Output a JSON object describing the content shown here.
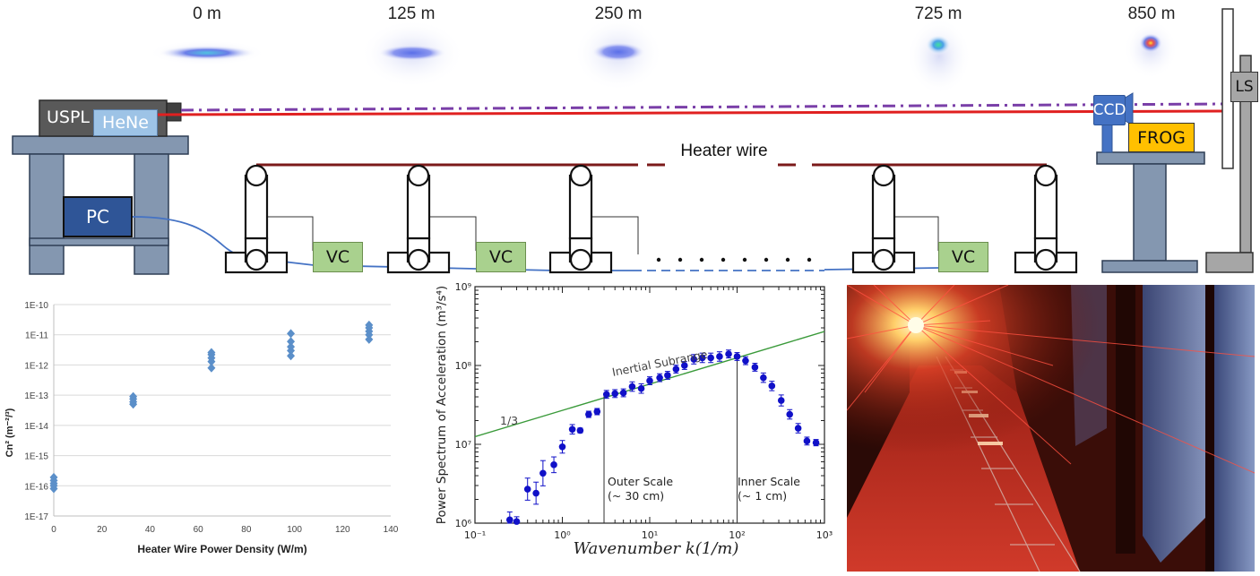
{
  "diagram": {
    "distances": [
      "0 m",
      "125 m",
      "250 m",
      "725 m",
      "850 m"
    ],
    "labels": {
      "uspl": "USPL",
      "hene": "HeNe",
      "pc": "PC",
      "ccd": "CCD",
      "frog": "FROG",
      "ls": "LS",
      "vc": "VC",
      "heater": "Heater wire"
    },
    "colors": {
      "laser_red": "#e02020",
      "dashdot_purple": "#7a3fa8",
      "heater_wire": "#7b1a1a",
      "cable_blue": "#4472c4",
      "stand_gray": "#8497b0",
      "vc_green": "#a9d18e",
      "frog_orange": "#ffc000",
      "ccd_blue": "#4472c4",
      "pc_navy": "#2f5597"
    }
  },
  "chart_data": [
    {
      "type": "scatter",
      "xlabel": "Heater Wire Power Density (W/m)",
      "ylabel": "Cn² (m⁻²/³)",
      "xlim": [
        0,
        140
      ],
      "xticks": [
        "0",
        "20",
        "40",
        "60",
        "80",
        "100",
        "120",
        "140"
      ],
      "yticks": [
        "1E-17",
        "1E-16",
        "1E-15",
        "1E-14",
        "1E-13",
        "1E-12",
        "1E-11",
        "1E-10"
      ],
      "ylog_range": [
        -17,
        -10
      ],
      "color": "#5b8fc9",
      "points": [
        {
          "x": 0,
          "y": 8e-17
        },
        {
          "x": 0,
          "y": 1e-16
        },
        {
          "x": 0,
          "y": 1.2e-16
        },
        {
          "x": 0,
          "y": 1.5e-16
        },
        {
          "x": 0,
          "y": 1.9e-16
        },
        {
          "x": 33,
          "y": 5e-14
        },
        {
          "x": 33,
          "y": 6e-14
        },
        {
          "x": 33,
          "y": 7.5e-14
        },
        {
          "x": 33,
          "y": 9e-14
        },
        {
          "x": 65.5,
          "y": 8e-13
        },
        {
          "x": 65.5,
          "y": 1.3e-12
        },
        {
          "x": 65.5,
          "y": 1.7e-12
        },
        {
          "x": 65.5,
          "y": 2.2e-12
        },
        {
          "x": 65.5,
          "y": 2.6e-12
        },
        {
          "x": 98.5,
          "y": 2e-12
        },
        {
          "x": 98.5,
          "y": 3e-12
        },
        {
          "x": 98.5,
          "y": 4e-12
        },
        {
          "x": 98.5,
          "y": 6e-12
        },
        {
          "x": 98.5,
          "y": 1.1e-11
        },
        {
          "x": 131,
          "y": 7e-12
        },
        {
          "x": 131,
          "y": 1e-11
        },
        {
          "x": 131,
          "y": 1.3e-11
        },
        {
          "x": 131,
          "y": 1.7e-11
        },
        {
          "x": 131,
          "y": 2.1e-11
        }
      ]
    },
    {
      "type": "scatter",
      "xlabel": "Wavenumber k(1/m)",
      "ylabel": "Power Spectrum of Acceleration (m³/s⁴)",
      "xlog_range": [
        -1,
        3
      ],
      "ylog_range": [
        6,
        9
      ],
      "xticks": [
        "10⁻¹",
        "10⁰",
        "10¹",
        "10²",
        "10³"
      ],
      "yticks": [
        "10⁶",
        "10⁷",
        "10⁸",
        "10⁹"
      ],
      "color": "#1010c8",
      "annotations": {
        "inertial": "Inertial Subrange",
        "slope": "1/3",
        "outer_scale": "Outer Scale",
        "outer_value": "(~ 30 cm)",
        "inner_scale": "Inner Scale",
        "inner_value": "(~ 1 cm)"
      },
      "outer_scale_k": 3,
      "inner_scale_k": 100,
      "fit_line": [
        {
          "k": 0.1,
          "p": 12500000
        },
        {
          "k": 1000,
          "p": 270000000
        }
      ],
      "points": [
        {
          "k": 0.25,
          "p": 1100000,
          "err": 0.1
        },
        {
          "k": 0.3,
          "p": 1050000,
          "err": 0.06
        },
        {
          "k": 0.4,
          "p": 2700000,
          "err": 0.14
        },
        {
          "k": 0.5,
          "p": 2400000,
          "err": 0.14
        },
        {
          "k": 0.6,
          "p": 4300000,
          "err": 0.16
        },
        {
          "k": 0.8,
          "p": 5500000,
          "err": 0.1
        },
        {
          "k": 1.0,
          "p": 9300000,
          "err": 0.08
        },
        {
          "k": 1.3,
          "p": 15500000,
          "err": 0.06
        },
        {
          "k": 1.6,
          "p": 15000000,
          "err": 0.03
        },
        {
          "k": 2.0,
          "p": 24000000,
          "err": 0.04
        },
        {
          "k": 2.5,
          "p": 26000000,
          "err": 0.04
        },
        {
          "k": 3.2,
          "p": 43000000,
          "err": 0.05
        },
        {
          "k": 4.0,
          "p": 44000000,
          "err": 0.05
        },
        {
          "k": 5.0,
          "p": 45000000,
          "err": 0.05
        },
        {
          "k": 6.3,
          "p": 54000000,
          "err": 0.06
        },
        {
          "k": 8.0,
          "p": 51000000,
          "err": 0.06
        },
        {
          "k": 10,
          "p": 64000000,
          "err": 0.05
        },
        {
          "k": 13,
          "p": 70000000,
          "err": 0.05
        },
        {
          "k": 16,
          "p": 75000000,
          "err": 0.05
        },
        {
          "k": 20,
          "p": 90000000,
          "err": 0.05
        },
        {
          "k": 25,
          "p": 100000000,
          "err": 0.05
        },
        {
          "k": 32,
          "p": 120000000,
          "err": 0.06
        },
        {
          "k": 40,
          "p": 125000000,
          "err": 0.06
        },
        {
          "k": 50,
          "p": 125000000,
          "err": 0.06
        },
        {
          "k": 63,
          "p": 130000000,
          "err": 0.06
        },
        {
          "k": 80,
          "p": 140000000,
          "err": 0.05
        },
        {
          "k": 100,
          "p": 130000000,
          "err": 0.05
        },
        {
          "k": 125,
          "p": 115000000,
          "err": 0.05
        },
        {
          "k": 160,
          "p": 95000000,
          "err": 0.05
        },
        {
          "k": 200,
          "p": 70000000,
          "err": 0.06
        },
        {
          "k": 250,
          "p": 55000000,
          "err": 0.06
        },
        {
          "k": 320,
          "p": 36000000,
          "err": 0.07
        },
        {
          "k": 400,
          "p": 24000000,
          "err": 0.06
        },
        {
          "k": 500,
          "p": 16000000,
          "err": 0.06
        },
        {
          "k": 630,
          "p": 11000000,
          "err": 0.05
        },
        {
          "k": 800,
          "p": 10500000,
          "err": 0.04
        }
      ]
    }
  ],
  "photo": {
    "colors": {
      "dark": "#3a0e08",
      "red": "#c0281e",
      "glow": "#fff6c8",
      "blue": "#6f8cc4"
    }
  }
}
